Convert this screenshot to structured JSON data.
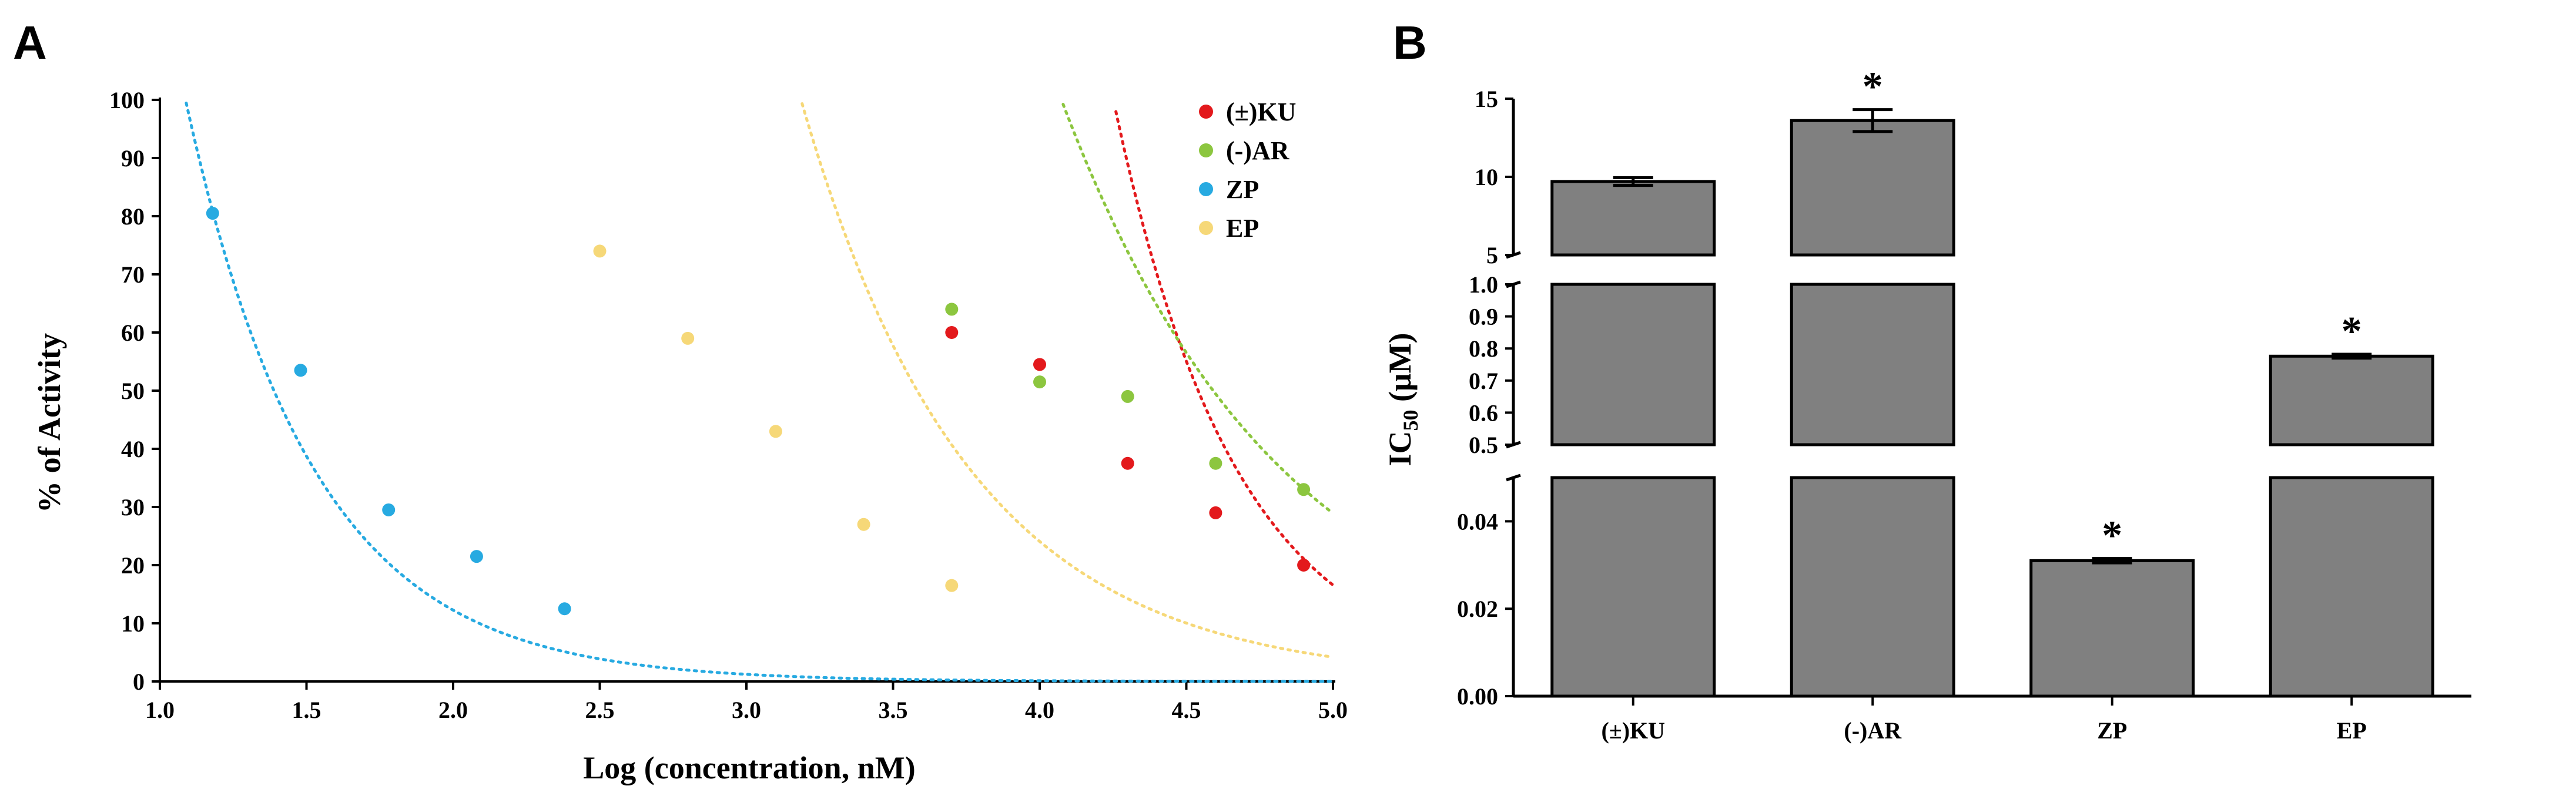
{
  "chart_data": [
    {
      "panel": "A",
      "type": "scatter",
      "title": "",
      "xlabel": "Log (concentration, nM)",
      "ylabel": "% of Activity",
      "xlim": [
        1.0,
        5.0
      ],
      "ylim": [
        0,
        100
      ],
      "x_ticks": [
        "1.0",
        "1.5",
        "2.0",
        "2.5",
        "3.0",
        "3.5",
        "4.0",
        "4.5",
        "5.0"
      ],
      "y_ticks": [
        "0",
        "10",
        "20",
        "30",
        "40",
        "50",
        "60",
        "70",
        "80",
        "90",
        "100"
      ],
      "legend_position": "top-right",
      "series": [
        {
          "name": "(±)KU",
          "color": "#e3191c",
          "points": [
            [
              3.7,
              60
            ],
            [
              4.0,
              54.5
            ],
            [
              4.3,
              37.5
            ],
            [
              4.6,
              29
            ],
            [
              4.9,
              20
            ]
          ],
          "fit": {
            "a": 2700000.0,
            "b": 2.4
          }
        },
        {
          "name": "(-)AR",
          "color": "#8cc63f",
          "points": [
            [
              3.7,
              64
            ],
            [
              4.0,
              51.5
            ],
            [
              4.3,
              49
            ],
            [
              4.6,
              37.5
            ],
            [
              4.9,
              33
            ]
          ],
          "fit": {
            "a": 23500,
            "b": 1.34
          }
        },
        {
          "name": "ZP",
          "color": "#27aae1",
          "points": [
            [
              1.18,
              80.5
            ],
            [
              1.48,
              53.5
            ],
            [
              1.78,
              29.5
            ],
            [
              2.08,
              21.5
            ],
            [
              2.38,
              12.5
            ]
          ],
          "fit": {
            "a": 1220,
            "b": 2.3
          }
        },
        {
          "name": "EP",
          "color": "#f6d878",
          "points": [
            [
              2.5,
              74
            ],
            [
              2.8,
              59
            ],
            [
              3.1,
              43
            ],
            [
              3.4,
              27
            ],
            [
              3.7,
              16.5
            ]
          ],
          "fit": {
            "a": 26400,
            "b": 1.75
          }
        }
      ]
    },
    {
      "panel": "B",
      "type": "bar",
      "ylabel_main": "IC",
      "ylabel_sub": "50",
      "ylabel_unit": " (μM)",
      "categories": [
        "(±)KU",
        "(-)AR",
        "ZP",
        "EP"
      ],
      "values": [
        9.7,
        13.6,
        0.031,
        0.776
      ],
      "errors": [
        0.25,
        0.7,
        0.0005,
        0.006
      ],
      "significant": [
        false,
        true,
        true,
        true
      ],
      "significance_mark": "*",
      "bar_color": "#808080",
      "segments": [
        {
          "range": [
            0,
            0.05
          ],
          "ticks": [
            "0.00",
            "0.02",
            "0.04"
          ],
          "tick_values": [
            0,
            0.02,
            0.04
          ]
        },
        {
          "range": [
            0.5,
            1.0
          ],
          "ticks": [
            "0.5",
            "0.6",
            "0.7",
            "0.8",
            "0.9",
            "1.0"
          ],
          "tick_values": [
            0.5,
            0.6,
            0.7,
            0.8,
            0.9,
            1.0
          ]
        },
        {
          "range": [
            5,
            15
          ],
          "ticks": [
            "5",
            "10",
            "15"
          ],
          "tick_values": [
            5,
            10,
            15
          ]
        }
      ]
    }
  ]
}
